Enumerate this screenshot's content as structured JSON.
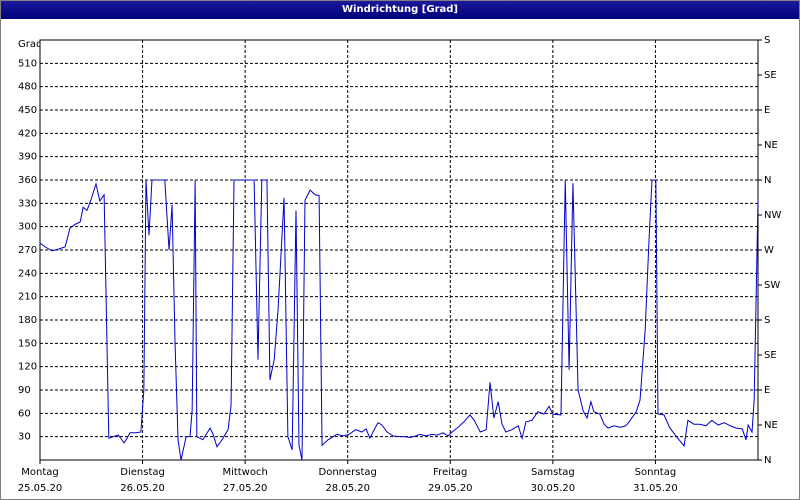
{
  "chart_data": {
    "type": "line",
    "title": "Windrichtung [Grad]",
    "ylabel": "Grad",
    "xlim": [
      0,
      168
    ],
    "xticks": [
      {
        "value": 0,
        "label": "Montag"
      },
      {
        "value": 24,
        "label": "Dienstag"
      },
      {
        "value": 48,
        "label": "Mittwoch"
      },
      {
        "value": 72,
        "label": "Donnerstag"
      },
      {
        "value": 96,
        "label": "Freitag"
      },
      {
        "value": 120,
        "label": "Samstag"
      },
      {
        "value": 144,
        "label": "Sonntag"
      }
    ],
    "xtick_dates": [
      "25.05.20",
      "26.05.20",
      "27.05.20",
      "28.05.20",
      "29.05.20",
      "30.05.20",
      "31.05.20"
    ],
    "ylim": [
      0,
      540
    ],
    "yticks": [
      30,
      60,
      90,
      120,
      150,
      180,
      210,
      240,
      270,
      300,
      330,
      360,
      390,
      420,
      450,
      480,
      510
    ],
    "y2lim": [
      0,
      540
    ],
    "y2ticks": [
      {
        "value": 0,
        "label": "N"
      },
      {
        "value": 45,
        "label": "NE"
      },
      {
        "value": 90,
        "label": "E"
      },
      {
        "value": 135,
        "label": "SE"
      },
      {
        "value": 180,
        "label": "S"
      },
      {
        "value": 225,
        "label": "SW"
      },
      {
        "value": 270,
        "label": "W"
      },
      {
        "value": 315,
        "label": "NW"
      },
      {
        "value": 360,
        "label": "N"
      },
      {
        "value": 405,
        "label": "NE"
      },
      {
        "value": 450,
        "label": "E"
      },
      {
        "value": 495,
        "label": "SE"
      },
      {
        "value": 540,
        "label": "S"
      }
    ],
    "grid": true,
    "series": [
      {
        "color": "#0000cc",
        "x": [
          0,
          1.2,
          2.8,
          4.2,
          5.9,
          7.0,
          8.2,
          9.4,
          10.1,
          11.0,
          11.9,
          13.1,
          14.0,
          15.0,
          16.1,
          17.1,
          18.3,
          19.7,
          21.1,
          22.5,
          23.6,
          24.3,
          24.8,
          25.5,
          26.2,
          28.1,
          29.2,
          30.2,
          30.9,
          31.6,
          32.3,
          33.0,
          34.2,
          35.1,
          35.6,
          36.3,
          36.7,
          38.1,
          39.8,
          40.5,
          41.4,
          42.6,
          44.0,
          44.7,
          45.4,
          48.0,
          50.1,
          51.0,
          51.9,
          53.1,
          53.8,
          54.8,
          55.7,
          57.1,
          58.0,
          59.0,
          59.9,
          60.6,
          61.3,
          62.0,
          63.2,
          64.4,
          65.3,
          66.0,
          67.4,
          68.6,
          69.5,
          70.9,
          72.3,
          73.9,
          75.3,
          76.3,
          77.2,
          78.2,
          79.1,
          80.0,
          81.2,
          82.6,
          83.8,
          85.2,
          86.6,
          88.0,
          88.9,
          90.3,
          91.7,
          92.9,
          94.3,
          95.5,
          96.4,
          97.8,
          99.2,
          100.6,
          101.6,
          103.0,
          104.4,
          105.3,
          106.2,
          107.2,
          108.1,
          109.0,
          110.4,
          111.9,
          112.8,
          113.7,
          115.1,
          116.5,
          117.9,
          119.1,
          120.0,
          121.9,
          122.9,
          123.8,
          124.7,
          125.9,
          127.1,
          128.0,
          128.9,
          129.6,
          131.0,
          132.0,
          132.9,
          134.3,
          135.7,
          137.1,
          138.1,
          139.5,
          140.4,
          141.6,
          142.5,
          143.2,
          144.1,
          144.6,
          146.0,
          147.4,
          148.8,
          150.7,
          151.6,
          153.0,
          154.4,
          155.8,
          157.2,
          158.7,
          160.1,
          161.5,
          162.9,
          164.3,
          165.2,
          165.7,
          166.6,
          167.1,
          168
        ],
        "values": [
          279,
          274,
          269,
          271,
          274,
          298,
          303,
          306,
          325,
          321,
          334,
          355,
          333,
          341,
          28,
          30,
          32,
          22,
          35,
          35,
          36,
          90,
          360,
          289,
          360,
          360,
          360,
          270,
          328,
          150,
          26,
          0,
          30,
          30,
          64,
          360,
          30,
          26,
          41,
          33,
          17,
          26,
          39,
          70,
          360,
          360,
          360,
          129,
          360,
          360,
          103,
          129,
          193,
          337,
          30,
          13,
          321,
          19,
          0,
          334,
          347,
          341,
          340,
          19,
          26,
          30,
          33,
          31,
          33,
          39,
          36,
          40,
          28,
          39,
          48,
          45,
          36,
          31,
          30,
          30,
          29,
          31,
          33,
          31,
          33,
          32,
          35,
          31,
          36,
          42,
          49,
          58,
          51,
          36,
          39,
          100,
          54,
          75,
          46,
          36,
          39,
          44,
          28,
          49,
          51,
          62,
          59,
          69,
          59,
          58,
          360,
          116,
          356,
          90,
          63,
          54,
          75,
          62,
          59,
          46,
          41,
          44,
          42,
          44,
          51,
          62,
          77,
          167,
          283,
          360,
          360,
          59,
          58,
          41,
          31,
          18,
          51,
          46,
          46,
          44,
          51,
          45,
          48,
          44,
          41,
          40,
          26,
          45,
          36,
          77,
          334
        ]
      }
    ]
  }
}
